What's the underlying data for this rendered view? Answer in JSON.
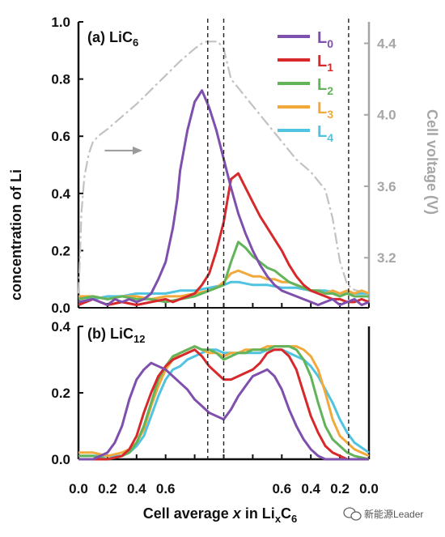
{
  "chart_data": [
    {
      "type": "line",
      "panel_label": "(a) LiC",
      "panel_label_sub": "6",
      "ylabel": "concentration of Li",
      "ylim": [
        0,
        1.0
      ],
      "yticks": [
        "0.0",
        "0.2",
        "0.4",
        "0.6",
        "0.8",
        "1.0"
      ],
      "y2label": "Cell voltage (V)",
      "y2lim": [
        2.92,
        4.52
      ],
      "y2ticks": [
        "3.2",
        "3.6",
        "4.0",
        "4.4"
      ],
      "legend": [
        {
          "label": "L",
          "sub": "0",
          "color": "#7f4fad"
        },
        {
          "label": "L",
          "sub": "1",
          "color": "#d7282b"
        },
        {
          "label": "L",
          "sub": "2",
          "color": "#62b35a"
        },
        {
          "label": "L",
          "sub": "3",
          "color": "#f2a93b"
        },
        {
          "label": "L",
          "sub": "4",
          "color": "#4fc3df"
        }
      ],
      "series": [
        {
          "color": "#7f4fad",
          "x": [
            0,
            0.1,
            0.2,
            0.25,
            0.3,
            0.35,
            0.4,
            0.45,
            0.5,
            0.55,
            0.6,
            0.65,
            0.68,
            0.7,
            0.75,
            0.8,
            0.85,
            0.9,
            0.95,
            1.0,
            1.05,
            1.1,
            1.15,
            1.2,
            1.25,
            1.3,
            1.35,
            1.4,
            1.45,
            1.5,
            1.55,
            1.6,
            1.65,
            1.7,
            1.75,
            1.8,
            1.85,
            1.9,
            1.95,
            2.0
          ],
          "y": [
            0.02,
            0.03,
            0.01,
            0.03,
            0.02,
            0.03,
            0.02,
            0.03,
            0.05,
            0.1,
            0.16,
            0.28,
            0.38,
            0.48,
            0.62,
            0.72,
            0.76,
            0.7,
            0.62,
            0.52,
            0.42,
            0.33,
            0.26,
            0.2,
            0.15,
            0.11,
            0.08,
            0.06,
            0.05,
            0.04,
            0.03,
            0.02,
            0.01,
            0.02,
            0.03,
            0.01,
            0.02,
            0.03,
            0.01,
            0.02
          ]
        },
        {
          "color": "#d7282b",
          "x": [
            0,
            0.1,
            0.2,
            0.3,
            0.4,
            0.5,
            0.6,
            0.65,
            0.7,
            0.75,
            0.8,
            0.85,
            0.9,
            0.95,
            1.0,
            1.05,
            1.1,
            1.15,
            1.2,
            1.25,
            1.3,
            1.35,
            1.4,
            1.45,
            1.5,
            1.55,
            1.6,
            1.65,
            1.7,
            1.75,
            1.8,
            1.85,
            1.9,
            1.95,
            2.0
          ],
          "y": [
            0.01,
            0.03,
            0.01,
            0.02,
            0.01,
            0.02,
            0.03,
            0.02,
            0.03,
            0.04,
            0.05,
            0.08,
            0.12,
            0.2,
            0.3,
            0.45,
            0.47,
            0.42,
            0.37,
            0.32,
            0.28,
            0.24,
            0.2,
            0.15,
            0.11,
            0.08,
            0.06,
            0.05,
            0.04,
            0.03,
            0.03,
            0.02,
            0.02,
            0.03,
            0.02
          ]
        },
        {
          "color": "#62b35a",
          "x": [
            0,
            0.1,
            0.2,
            0.3,
            0.4,
            0.5,
            0.6,
            0.7,
            0.8,
            0.85,
            0.9,
            0.95,
            1.0,
            1.05,
            1.1,
            1.15,
            1.2,
            1.25,
            1.3,
            1.35,
            1.4,
            1.45,
            1.5,
            1.55,
            1.6,
            1.65,
            1.7,
            1.75,
            1.8,
            1.85,
            1.9,
            1.95,
            2.0
          ],
          "y": [
            0.03,
            0.04,
            0.03,
            0.04,
            0.03,
            0.03,
            0.02,
            0.03,
            0.04,
            0.05,
            0.06,
            0.07,
            0.08,
            0.16,
            0.23,
            0.21,
            0.18,
            0.16,
            0.14,
            0.13,
            0.11,
            0.09,
            0.08,
            0.07,
            0.06,
            0.06,
            0.05,
            0.05,
            0.04,
            0.05,
            0.04,
            0.04,
            0.04
          ]
        },
        {
          "color": "#f2a93b",
          "x": [
            0,
            0.1,
            0.2,
            0.3,
            0.4,
            0.5,
            0.6,
            0.7,
            0.8,
            0.9,
            0.95,
            1.0,
            1.05,
            1.1,
            1.15,
            1.2,
            1.25,
            1.3,
            1.35,
            1.4,
            1.45,
            1.5,
            1.55,
            1.6,
            1.65,
            1.7,
            1.75,
            1.8,
            1.85,
            1.9,
            1.95,
            2.0
          ],
          "y": [
            0.04,
            0.04,
            0.03,
            0.04,
            0.04,
            0.03,
            0.04,
            0.04,
            0.05,
            0.06,
            0.07,
            0.09,
            0.12,
            0.13,
            0.12,
            0.11,
            0.11,
            0.1,
            0.1,
            0.09,
            0.09,
            0.08,
            0.07,
            0.06,
            0.06,
            0.05,
            0.06,
            0.05,
            0.06,
            0.05,
            0.06,
            0.05
          ]
        },
        {
          "color": "#4fc3df",
          "x": [
            0,
            0.1,
            0.2,
            0.3,
            0.4,
            0.5,
            0.6,
            0.7,
            0.8,
            0.9,
            1.0,
            1.05,
            1.1,
            1.2,
            1.3,
            1.4,
            1.5,
            1.6,
            1.7,
            1.8,
            1.9,
            2.0
          ],
          "y": [
            0.04,
            0.03,
            0.04,
            0.04,
            0.05,
            0.05,
            0.05,
            0.06,
            0.06,
            0.07,
            0.08,
            0.09,
            0.09,
            0.08,
            0.08,
            0.07,
            0.07,
            0.06,
            0.06,
            0.05,
            0.05,
            0.05
          ]
        }
      ],
      "voltage": {
        "color": "#c2c2c2",
        "x": [
          0,
          0.01,
          0.02,
          0.04,
          0.07,
          0.1,
          0.15,
          0.2,
          0.3,
          0.4,
          0.5,
          0.6,
          0.7,
          0.8,
          0.85,
          0.88,
          0.92,
          0.96,
          1.0,
          1.05,
          1.1,
          1.2,
          1.3,
          1.4,
          1.5,
          1.6,
          1.7,
          1.75,
          1.8,
          1.85,
          1.9,
          2.0
        ],
        "v": [
          3.0,
          3.2,
          3.45,
          3.65,
          3.78,
          3.85,
          3.89,
          3.92,
          3.99,
          4.06,
          4.14,
          4.22,
          4.3,
          4.37,
          4.4,
          4.41,
          4.41,
          4.41,
          4.37,
          4.2,
          4.15,
          4.05,
          3.95,
          3.85,
          3.75,
          3.68,
          3.58,
          3.42,
          3.18,
          3.05,
          3.02,
          3.0
        ]
      },
      "arrow": {
        "x_from": 0.18,
        "x_to": 0.44,
        "v": 3.8
      }
    },
    {
      "type": "line",
      "panel_label": "(b) LiC",
      "panel_label_sub": "12",
      "ylim": [
        0,
        0.4
      ],
      "yticks": [
        "0.0",
        "0.2",
        "0.4"
      ],
      "series": [
        {
          "color": "#7f4fad",
          "x": [
            0,
            0.1,
            0.2,
            0.25,
            0.3,
            0.35,
            0.4,
            0.45,
            0.5,
            0.55,
            0.6,
            0.65,
            0.7,
            0.75,
            0.8,
            0.85,
            0.9,
            0.95,
            1.0,
            1.05,
            1.1,
            1.15,
            1.2,
            1.25,
            1.3,
            1.35,
            1.4,
            1.45,
            1.5,
            1.55,
            1.6,
            1.65,
            1.7,
            1.75,
            1.8,
            1.85,
            1.9,
            2.0
          ],
          "y": [
            0.0,
            0.0,
            0.02,
            0.05,
            0.1,
            0.18,
            0.24,
            0.27,
            0.29,
            0.28,
            0.27,
            0.25,
            0.23,
            0.21,
            0.18,
            0.16,
            0.14,
            0.13,
            0.12,
            0.15,
            0.19,
            0.22,
            0.25,
            0.26,
            0.27,
            0.25,
            0.21,
            0.15,
            0.1,
            0.06,
            0.03,
            0.01,
            0.0,
            0.0,
            0.0,
            0.0,
            0.0,
            0.0
          ]
        },
        {
          "color": "#d7282b",
          "x": [
            0,
            0.1,
            0.2,
            0.3,
            0.35,
            0.4,
            0.45,
            0.5,
            0.55,
            0.6,
            0.65,
            0.7,
            0.75,
            0.8,
            0.85,
            0.9,
            0.95,
            1.0,
            1.05,
            1.1,
            1.15,
            1.2,
            1.25,
            1.3,
            1.35,
            1.4,
            1.45,
            1.5,
            1.55,
            1.6,
            1.65,
            1.7,
            1.75,
            1.8,
            1.85,
            1.9,
            2.0
          ],
          "y": [
            0.0,
            0.0,
            0.0,
            0.01,
            0.03,
            0.07,
            0.14,
            0.2,
            0.25,
            0.28,
            0.3,
            0.31,
            0.32,
            0.33,
            0.31,
            0.28,
            0.26,
            0.24,
            0.24,
            0.25,
            0.26,
            0.27,
            0.29,
            0.32,
            0.33,
            0.33,
            0.31,
            0.27,
            0.2,
            0.13,
            0.08,
            0.04,
            0.02,
            0.01,
            0.0,
            0.0,
            0.0
          ]
        },
        {
          "color": "#62b35a",
          "x": [
            0,
            0.1,
            0.2,
            0.3,
            0.35,
            0.4,
            0.45,
            0.5,
            0.55,
            0.6,
            0.65,
            0.7,
            0.75,
            0.8,
            0.85,
            0.9,
            0.95,
            1.0,
            1.05,
            1.1,
            1.15,
            1.2,
            1.25,
            1.3,
            1.35,
            1.4,
            1.45,
            1.5,
            1.55,
            1.6,
            1.65,
            1.7,
            1.75,
            1.8,
            1.85,
            1.9,
            2.0
          ],
          "y": [
            0.01,
            0.01,
            0.0,
            0.01,
            0.02,
            0.05,
            0.1,
            0.17,
            0.24,
            0.28,
            0.31,
            0.32,
            0.33,
            0.34,
            0.33,
            0.33,
            0.32,
            0.3,
            0.31,
            0.32,
            0.32,
            0.33,
            0.33,
            0.33,
            0.34,
            0.34,
            0.34,
            0.33,
            0.3,
            0.25,
            0.17,
            0.1,
            0.06,
            0.04,
            0.02,
            0.01,
            0.0
          ]
        },
        {
          "color": "#f2a93b",
          "x": [
            0,
            0.1,
            0.2,
            0.3,
            0.35,
            0.4,
            0.45,
            0.5,
            0.55,
            0.6,
            0.65,
            0.7,
            0.75,
            0.8,
            0.85,
            0.9,
            0.95,
            1.0,
            1.05,
            1.1,
            1.15,
            1.2,
            1.25,
            1.3,
            1.35,
            1.4,
            1.45,
            1.5,
            1.55,
            1.6,
            1.65,
            1.7,
            1.75,
            1.8,
            1.85,
            1.9,
            2.0
          ],
          "y": [
            0.02,
            0.02,
            0.01,
            0.02,
            0.03,
            0.05,
            0.09,
            0.16,
            0.22,
            0.27,
            0.3,
            0.32,
            0.33,
            0.34,
            0.33,
            0.32,
            0.32,
            0.31,
            0.32,
            0.32,
            0.33,
            0.33,
            0.33,
            0.34,
            0.34,
            0.34,
            0.34,
            0.34,
            0.33,
            0.31,
            0.27,
            0.2,
            0.12,
            0.07,
            0.05,
            0.03,
            0.01
          ]
        },
        {
          "color": "#4fc3df",
          "x": [
            0,
            0.1,
            0.2,
            0.3,
            0.35,
            0.4,
            0.45,
            0.5,
            0.55,
            0.6,
            0.65,
            0.7,
            0.75,
            0.8,
            0.85,
            0.9,
            0.95,
            1.0,
            1.05,
            1.1,
            1.15,
            1.2,
            1.25,
            1.3,
            1.35,
            1.4,
            1.45,
            1.5,
            1.55,
            1.6,
            1.65,
            1.7,
            1.75,
            1.8,
            1.85,
            1.9,
            2.0
          ],
          "y": [
            0.01,
            0.01,
            0.01,
            0.01,
            0.02,
            0.04,
            0.07,
            0.13,
            0.19,
            0.24,
            0.27,
            0.28,
            0.3,
            0.31,
            0.32,
            0.33,
            0.33,
            0.32,
            0.32,
            0.32,
            0.32,
            0.32,
            0.32,
            0.33,
            0.33,
            0.33,
            0.32,
            0.31,
            0.3,
            0.28,
            0.25,
            0.21,
            0.17,
            0.12,
            0.08,
            0.05,
            0.02
          ]
        }
      ]
    }
  ],
  "x_axis": {
    "label_prefix": "Cell average ",
    "label_symbol": "x",
    "label_mid": " in Li",
    "label_sub_x": "x",
    "label_c": "C",
    "label_sub_6": "6",
    "tick_values": [
      0,
      0.2,
      0.4,
      0.6,
      0.8,
      1.0,
      1.2,
      1.4,
      1.6,
      1.8,
      2.0
    ],
    "tick_labels": [
      "0.0",
      "0.2",
      "0.4",
      "0.6",
      "0.6",
      "0.4",
      "0.2",
      "0.0"
    ],
    "tick_label_positions": [
      0,
      0.2,
      0.4,
      0.6,
      1.4,
      1.6,
      1.8,
      2.0
    ],
    "dashed_lines_x": [
      0.89,
      1.0,
      1.86
    ]
  },
  "watermark": {
    "text": "新能源Leader",
    "icon": "wechat-icon"
  }
}
